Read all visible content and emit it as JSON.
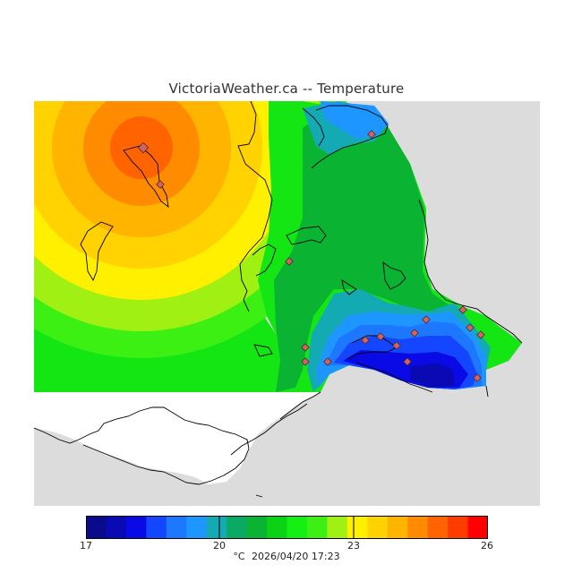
{
  "header": {
    "title": "VictoriaWeather.ca -- Temperature"
  },
  "colorbar": {
    "colors": [
      "#0a0a8c",
      "#0a0ab4",
      "#0a0ae6",
      "#1446ff",
      "#1e78ff",
      "#1e96ff",
      "#14aab4",
      "#0aaa64",
      "#0ab432",
      "#0ad214",
      "#14f014",
      "#3cf014",
      "#a0f014",
      "#fff000",
      "#ffd200",
      "#ffb400",
      "#ff8c00",
      "#ff6400",
      "#ff3c00",
      "#ff0000"
    ],
    "labels": [
      "17",
      "20",
      "23",
      "26"
    ]
  },
  "footer": {
    "unit": "°C",
    "datetime": "2026/04/20 17:23"
  },
  "stations_count": 20
}
